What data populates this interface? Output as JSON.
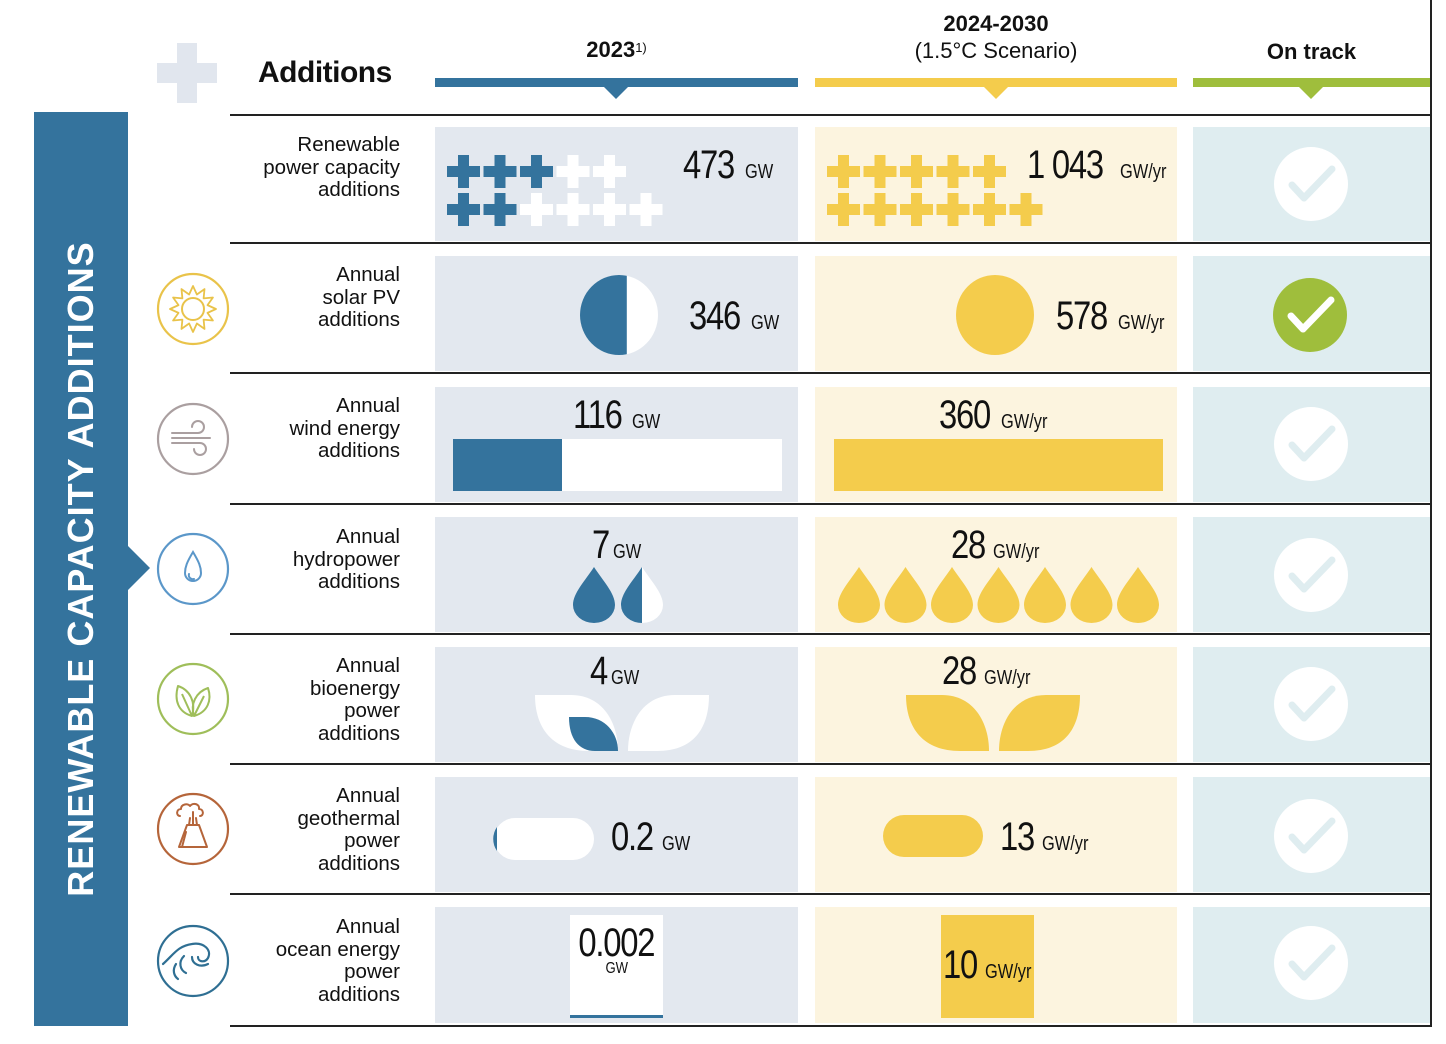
{
  "header": {
    "title": "Additions",
    "columns": [
      {
        "label": "2023",
        "footnote": "1)",
        "color": "#34739d"
      },
      {
        "label": "2024-2030",
        "sublabel": "(1.5°C Scenario)",
        "color": "#f4cc4c"
      },
      {
        "label": "On track",
        "color": "#9fbe3c"
      }
    ]
  },
  "banner": {
    "text": "RENEWABLE CAPACITY ADDITIONS",
    "color": "#34739d"
  },
  "colors": {
    "actual": "#34739d",
    "target": "#f4cc4c",
    "on_track": "#9fbe3c",
    "cell_2023_bg": "#e3e8ef",
    "cell_2030_bg": "#fcf4df",
    "cell_track_bg": "#dfedf0"
  },
  "chart_data": {
    "type": "table",
    "title": "Renewable capacity additions",
    "columns": [
      "Additions",
      "2023",
      "2024-2030 (1.5°C Scenario)",
      "On track"
    ],
    "rows": [
      {
        "label": "Renewable power capacity additions",
        "icon": "plus-icon",
        "value_2023": 473,
        "unit_2023": "GW",
        "value_2030": 1043,
        "value_2030_text": "1 043",
        "unit_2030": "GW/yr",
        "on_track": false,
        "pictogram": "plus",
        "pictogram_filled_2023": 5,
        "pictogram_total_2023": 11,
        "pictogram_total_2030": 11
      },
      {
        "label": "Annual solar PV additions",
        "icon": "sun-icon",
        "icon_color": "#e9c34a",
        "value_2023": 346,
        "unit_2023": "GW",
        "value_2030": 578,
        "unit_2030": "GW/yr",
        "on_track": true,
        "pictogram": "circle",
        "fill_fraction_2023": 0.6
      },
      {
        "label": "Annual wind energy additions",
        "icon": "wind-icon",
        "icon_color": "#aa9fa0",
        "value_2023": 116,
        "unit_2023": "GW",
        "value_2030": 360,
        "unit_2030": "GW/yr",
        "on_track": false,
        "pictogram": "bar",
        "fill_fraction_2023": 0.33
      },
      {
        "label": "Annual hydropower additions",
        "icon": "water-drop-icon",
        "icon_color": "#5b97c9",
        "value_2023": 7,
        "unit_2023": "GW",
        "value_2030": 28,
        "unit_2030": "GW/yr",
        "on_track": false,
        "pictogram": "drop",
        "pictogram_count_2023": 1.5,
        "pictogram_count_2030": 7
      },
      {
        "label": "Annual bioenergy power additions",
        "icon": "leaves-icon",
        "icon_color": "#9fbe5a",
        "value_2023": 4,
        "unit_2023": "GW",
        "value_2030": 28,
        "unit_2030": "GW/yr",
        "on_track": false,
        "pictogram": "leaf",
        "fill_fraction_2023": 0.14
      },
      {
        "label": "Annual geothermal power additions",
        "icon": "volcano-icon",
        "icon_color": "#b5653a",
        "value_2023": 0.2,
        "unit_2023": "GW",
        "value_2030": 13,
        "unit_2030": "GW/yr",
        "on_track": false,
        "pictogram": "pill",
        "fill_fraction_2023": 0.015
      },
      {
        "label": "Annual ocean energy power additions",
        "icon": "wave-icon",
        "icon_color": "#2f6f93",
        "value_2023": 0.002,
        "unit_2023": "GW",
        "value_2030": 10,
        "unit_2030": "GW/yr",
        "on_track": false,
        "pictogram": "rect",
        "fill_fraction_2023": 0.0002
      }
    ]
  },
  "rows": [
    {
      "label_lines": [
        "Renewable",
        "power capacity",
        "additions"
      ],
      "v2023": "473",
      "u2023": "GW",
      "v2030": "1 043",
      "u2030": "GW/yr"
    },
    {
      "label_lines": [
        "Annual",
        "solar PV",
        "additions"
      ],
      "v2023": "346",
      "u2023": "GW",
      "v2030": "578",
      "u2030": "GW/yr"
    },
    {
      "label_lines": [
        "Annual",
        "wind energy",
        "additions"
      ],
      "v2023": "116",
      "u2023": "GW",
      "v2030": "360",
      "u2030": "GW/yr"
    },
    {
      "label_lines": [
        "Annual",
        "hydropower",
        "additions"
      ],
      "v2023": "7",
      "u2023": "GW",
      "v2030": "28",
      "u2030": "GW/yr"
    },
    {
      "label_lines": [
        "Annual",
        "bioenergy",
        "power",
        "additions"
      ],
      "v2023": "4",
      "u2023": "GW",
      "v2030": "28",
      "u2030": "GW/yr"
    },
    {
      "label_lines": [
        "Annual",
        "geothermal",
        "power",
        "additions"
      ],
      "v2023": "0.2",
      "u2023": "GW",
      "v2030": "13",
      "u2030": "GW/yr"
    },
    {
      "label_lines": [
        "Annual",
        "ocean energy",
        "power",
        "additions"
      ],
      "v2023": "0.002",
      "u2023": "GW",
      "v2030": "10",
      "u2030": "GW/yr"
    }
  ]
}
